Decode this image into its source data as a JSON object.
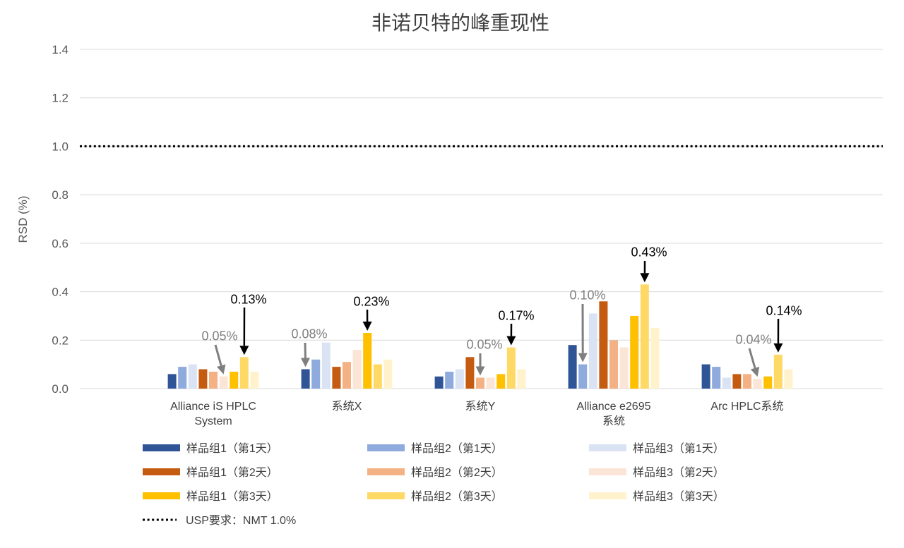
{
  "chart_data": {
    "type": "bar",
    "title": "非诺贝特的峰重现性",
    "xlabel": "",
    "ylabel": "RSD (%)",
    "ylim": [
      0,
      1.4
    ],
    "y_tick_labels": [
      "0.0",
      "0.2",
      "0.4",
      "0.6",
      "0.8",
      "1.0",
      "1.2",
      "1.4"
    ],
    "grid": true,
    "legend_position": "bottom",
    "categories": [
      [
        "Alliance iS HPLC",
        "System"
      ],
      [
        "系统X"
      ],
      [
        "系统Y"
      ],
      [
        "Alliance e2695",
        "系统"
      ],
      [
        "Arc HPLC系统"
      ]
    ],
    "series": [
      {
        "name": "样品组1（第1天）",
        "color": "#2F5597",
        "values": [
          0.06,
          0.08,
          0.05,
          0.18,
          0.1
        ]
      },
      {
        "name": "样品组2（第1天）",
        "color": "#8FAADC",
        "values": [
          0.09,
          0.12,
          0.07,
          0.1,
          0.09
        ]
      },
      {
        "name": "样品组3（第1天）",
        "color": "#DAE3F3",
        "values": [
          0.1,
          0.19,
          0.08,
          0.31,
          0.045
        ]
      },
      {
        "name": "样品组1（第2天）",
        "color": "#C55A11",
        "values": [
          0.08,
          0.09,
          0.13,
          0.36,
          0.06
        ]
      },
      {
        "name": "样品组2（第2天）",
        "color": "#F4B183",
        "values": [
          0.07,
          0.11,
          0.045,
          0.2,
          0.06
        ]
      },
      {
        "name": "样品组3（第2天）",
        "color": "#FBE5D6",
        "values": [
          0.05,
          0.16,
          0.045,
          0.17,
          0.04
        ]
      },
      {
        "name": "样品组1（第3天）",
        "color": "#FFC000",
        "values": [
          0.07,
          0.23,
          0.06,
          0.3,
          0.05
        ]
      },
      {
        "name": "样品组2（第3天）",
        "color": "#FFD966",
        "values": [
          0.13,
          0.1,
          0.17,
          0.43,
          0.14
        ]
      },
      {
        "name": "样品组3（第3天）",
        "color": "#FFF2CC",
        "values": [
          0.07,
          0.12,
          0.08,
          0.25,
          0.08
        ]
      }
    ],
    "reference_line": {
      "value": 1.0,
      "label": "USP要求：NMT 1.0%",
      "line_style": "dotted",
      "color": "#000000"
    },
    "annotations": [
      {
        "min": "0.05%",
        "max": "0.13%"
      },
      {
        "min": "0.08%",
        "max": "0.23%"
      },
      {
        "min": "0.05%",
        "max": "0.17%"
      },
      {
        "min": "0.10%",
        "max": "0.43%"
      },
      {
        "min": "0.04%",
        "max": "0.14%"
      }
    ],
    "annotation_colors": {
      "min": "#7F7F7F",
      "max": "#000000"
    }
  }
}
